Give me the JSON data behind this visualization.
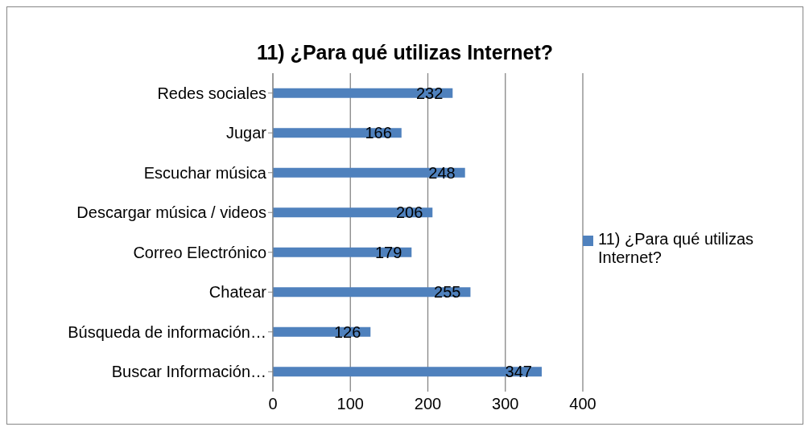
{
  "chart_data": {
    "type": "bar",
    "orientation": "horizontal",
    "title": "11) ¿Para qué utilizas Internet?",
    "categories": [
      "Redes sociales",
      "Jugar",
      "Escuchar música",
      "Descargar música / videos",
      "Correo Electrónico",
      "Chatear",
      "Búsqueda de información…",
      "Buscar Información…"
    ],
    "series": [
      {
        "name": "11) ¿Para qué utilizas Internet?",
        "color": "#4f81bd",
        "values": [
          232,
          166,
          248,
          206,
          179,
          255,
          126,
          347
        ]
      }
    ],
    "xlim": [
      0,
      400
    ],
    "xticks": [
      0,
      100,
      200,
      300,
      400
    ],
    "grid": "x",
    "legend": "right",
    "data_labels": true
  }
}
